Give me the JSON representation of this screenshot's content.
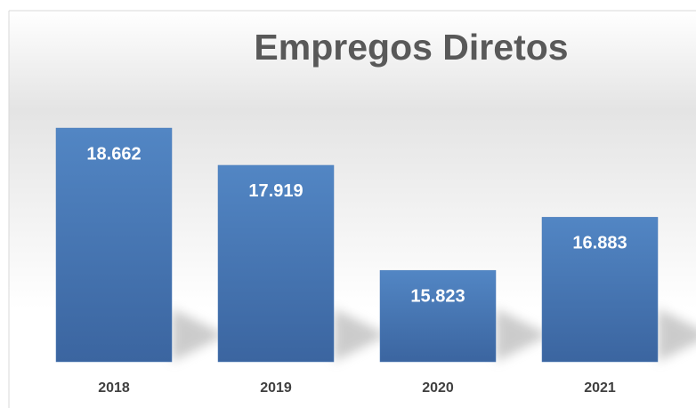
{
  "chart_data": {
    "type": "bar",
    "title": "Empregos Diretos",
    "categories": [
      "2018",
      "2019",
      "2020",
      "2021"
    ],
    "values": [
      18662,
      17919,
      15823,
      16883
    ],
    "value_labels": [
      "18.662",
      "17.919",
      "15.823",
      "16.883"
    ],
    "color": "#4a7ab8",
    "ylim": [
      14000,
      19000
    ]
  }
}
